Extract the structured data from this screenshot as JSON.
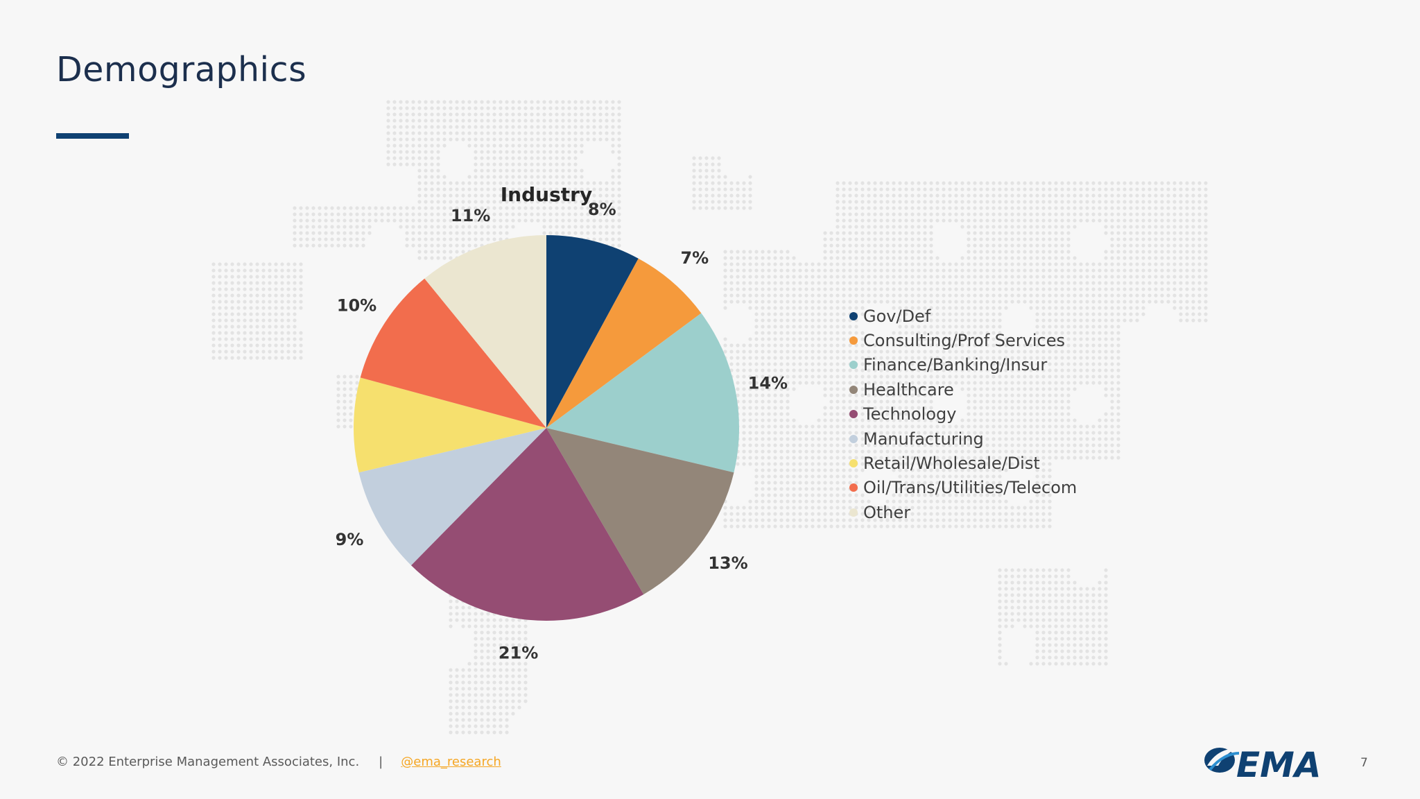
{
  "slide": {
    "title": "Demographics"
  },
  "chart_data": {
    "type": "pie",
    "title": "Industry",
    "categories": [
      "Gov/Def",
      "Consulting/Prof Services",
      "Finance/Banking/Insur",
      "Healthcare",
      "Technology",
      "Manufacturing",
      "Retail/Wholesale/Dist",
      "Oil/Trans/Utilities/Telecom",
      "Other"
    ],
    "values": [
      8,
      7,
      14,
      13,
      21,
      9,
      8,
      10,
      11
    ],
    "labels": [
      "8%",
      "7%",
      "14%",
      "13%",
      "21%",
      "9%",
      "",
      "10%",
      "11%"
    ],
    "colors": [
      "#0f4172",
      "#f59a3c",
      "#9ccfcc",
      "#938679",
      "#954d73",
      "#c2cfdd",
      "#f6e06e",
      "#f26d4d",
      "#ebe6d0"
    ],
    "start_angle_deg": 0,
    "direction": "clockwise",
    "legend_position": "right"
  },
  "footer": {
    "copyright": "© 2022 Enterprise Management Associates, Inc.",
    "separator": "|",
    "handle": "@ema_research"
  },
  "logo": {
    "text": "EMA",
    "icon": "ema-swoosh-logo"
  },
  "page_number": "7"
}
